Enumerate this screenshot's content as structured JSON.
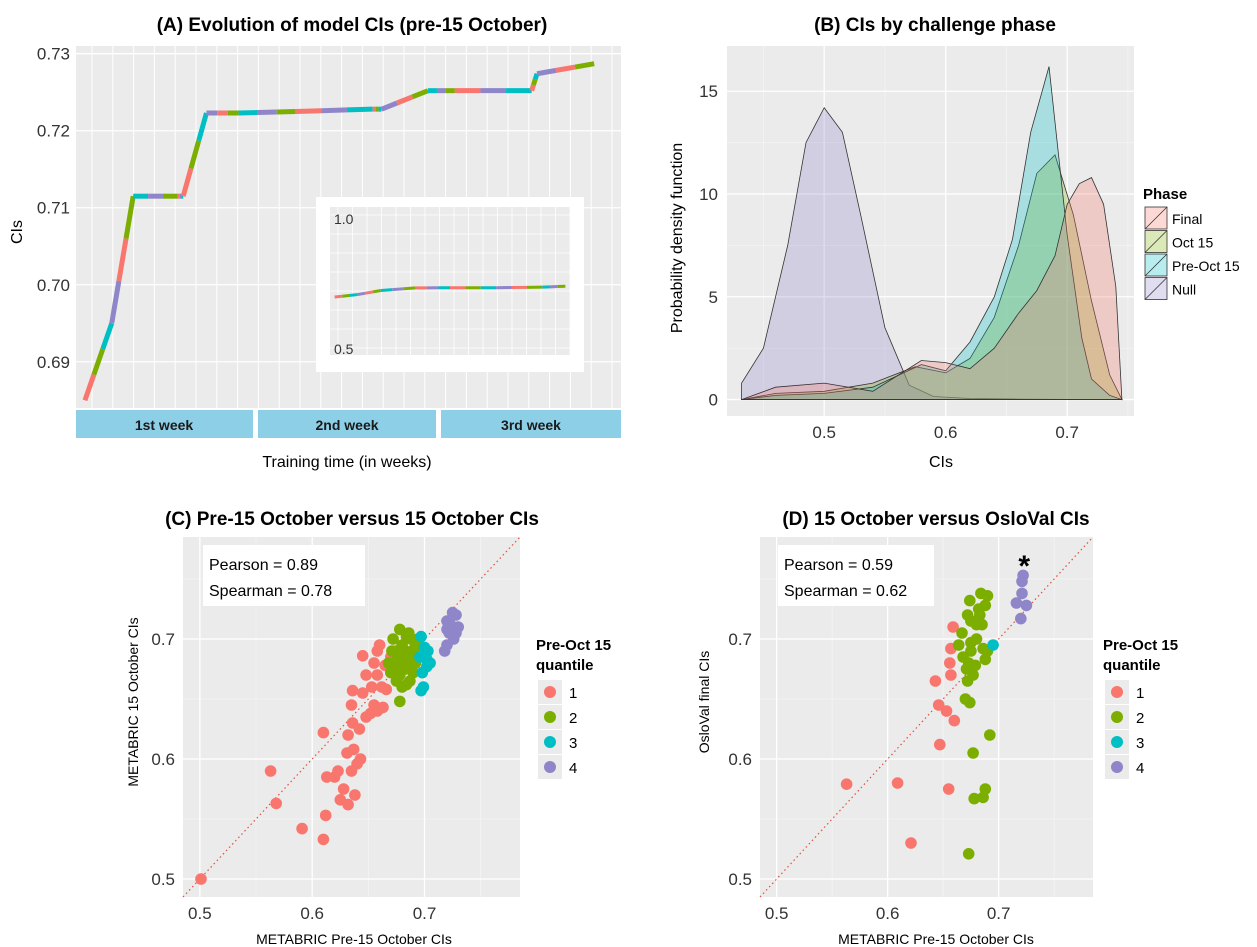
{
  "colors": {
    "panel_bg": "#ebebeb",
    "grid": "#ffffff",
    "week_bar": "#8ecfe8",
    "q1": "#f8766d",
    "q2": "#7cae00",
    "q3": "#00bfc4",
    "q4": "#8f86c9",
    "phase_final": "#f8766d",
    "phase_oct15": "#7cae00",
    "phase_preoct15": "#00bfc4",
    "phase_null": "#8f86c9",
    "diag_line": "#e0503e"
  },
  "chart_data": [
    {
      "id": "A",
      "type": "line",
      "title": "(A) Evolution of model CIs (pre-15 October)",
      "ylabel": "CIs",
      "xlabel": "Training time (in weeks)",
      "ylim": [
        0.684,
        0.731
      ],
      "yticks": [
        0.69,
        0.7,
        0.71,
        0.72,
        0.73
      ],
      "ytick_labels": [
        "0.69",
        "0.70",
        "0.71",
        "0.72",
        "0.73"
      ],
      "week_labels": [
        "1st week",
        "2nd week",
        "3rd week"
      ],
      "grid": true,
      "x": [
        0.0,
        0.15,
        0.27,
        0.52,
        0.55,
        0.68,
        0.86,
        1.18,
        1.61,
        1.66,
        1.92,
        2.07,
        2.5,
        2.53,
        2.85
      ],
      "y": [
        0.685,
        0.695,
        0.7115,
        0.7115,
        0.7115,
        0.7223,
        0.7223,
        0.7225,
        0.7228,
        0.7228,
        0.7252,
        0.7252,
        0.7252,
        0.7274,
        0.7287
      ],
      "inset": {
        "ytick_labels": [
          "1.0",
          "0.5"
        ],
        "yticks": [
          1.0,
          0.5
        ],
        "ylim": [
          0.45,
          1.05
        ],
        "x": [
          0.0,
          0.1,
          0.2,
          0.35,
          0.5,
          0.7,
          0.9,
          1.0
        ],
        "y": [
          0.685,
          0.695,
          0.7115,
          0.7223,
          0.7225,
          0.7228,
          0.7252,
          0.7287
        ]
      }
    },
    {
      "id": "B",
      "type": "area",
      "title": "(B) CIs by challenge phase",
      "xlabel": "CIs",
      "ylabel": "Probability density function",
      "xlim": [
        0.42,
        0.755
      ],
      "ylim": [
        -0.8,
        17.2
      ],
      "xticks": [
        0.5,
        0.6,
        0.7
      ],
      "xtick_labels": [
        "0.5",
        "0.6",
        "0.7"
      ],
      "yticks": [
        0,
        5,
        10,
        15
      ],
      "ytick_labels": [
        "0",
        "5",
        "10",
        "15"
      ],
      "grid": true,
      "legend_title": "Phase",
      "legend_position": "right",
      "series": [
        {
          "name": "Null",
          "color_key": "phase_null",
          "x": [
            0.432,
            0.45,
            0.47,
            0.485,
            0.5,
            0.515,
            0.53,
            0.55,
            0.57,
            0.59,
            0.62,
            0.66,
            0.7,
            0.745
          ],
          "y": [
            0.8,
            2.5,
            7.5,
            12.5,
            14.2,
            13.0,
            9.0,
            3.5,
            0.7,
            0.15,
            0.05,
            0.02,
            0.01,
            0.0
          ]
        },
        {
          "name": "Oct 15",
          "color_key": "phase_oct15",
          "x": [
            0.432,
            0.46,
            0.5,
            0.54,
            0.575,
            0.6,
            0.62,
            0.64,
            0.66,
            0.675,
            0.69,
            0.705,
            0.72,
            0.735,
            0.745
          ],
          "y": [
            0.0,
            0.3,
            0.4,
            0.8,
            1.6,
            1.3,
            2.0,
            4.0,
            7.5,
            11.0,
            11.9,
            9.0,
            4.8,
            1.2,
            0.0
          ]
        },
        {
          "name": "Pre-Oct 15",
          "color_key": "phase_preoct15",
          "x": [
            0.432,
            0.46,
            0.5,
            0.54,
            0.58,
            0.6,
            0.62,
            0.64,
            0.655,
            0.67,
            0.685,
            0.7,
            0.712,
            0.72,
            0.735,
            0.745
          ],
          "y": [
            0.0,
            0.2,
            0.3,
            0.6,
            1.7,
            1.4,
            2.8,
            5.0,
            7.8,
            13.0,
            16.2,
            8.0,
            3.0,
            1.0,
            0.2,
            0.0
          ]
        },
        {
          "name": "Final",
          "color_key": "phase_final",
          "x": [
            0.432,
            0.46,
            0.5,
            0.54,
            0.58,
            0.6,
            0.62,
            0.64,
            0.66,
            0.675,
            0.69,
            0.7,
            0.71,
            0.72,
            0.73,
            0.74,
            0.745
          ],
          "y": [
            0.0,
            0.6,
            0.8,
            0.4,
            1.9,
            1.8,
            1.5,
            2.5,
            4.2,
            5.3,
            7.0,
            9.5,
            10.5,
            10.8,
            9.5,
            5.5,
            0.0
          ]
        }
      ]
    },
    {
      "id": "C",
      "type": "scatter",
      "title": "(C) Pre-15 October versus 15 October CIs",
      "xlabel": "METABRIC Pre-15 October CIs",
      "ylabel": "METABRIC 15 October CIs",
      "xlim": [
        0.485,
        0.785
      ],
      "ylim": [
        0.485,
        0.785
      ],
      "xticks": [
        0.5,
        0.6,
        0.7
      ],
      "yticks": [
        0.5,
        0.6,
        0.7
      ],
      "xtick_labels": [
        "0.5",
        "0.6",
        "0.7"
      ],
      "ytick_labels": [
        "0.5",
        "0.6",
        "0.7"
      ],
      "grid": true,
      "annotation": [
        "Pearson = 0.89",
        "Spearman = 0.78"
      ],
      "legend_title": [
        "Pre-Oct 15",
        "quantile"
      ],
      "legend_position": "right",
      "legend_labels": [
        "1",
        "2",
        "3",
        "4"
      ],
      "series": [
        {
          "name": "1",
          "color_key": "q1",
          "points": [
            [
              0.501,
              0.5
            ],
            [
              0.568,
              0.563
            ],
            [
              0.563,
              0.59
            ],
            [
              0.591,
              0.542
            ],
            [
              0.61,
              0.533
            ],
            [
              0.612,
              0.553
            ],
            [
              0.613,
              0.585
            ],
            [
              0.62,
              0.585
            ],
            [
              0.625,
              0.566
            ],
            [
              0.623,
              0.59
            ],
            [
              0.628,
              0.575
            ],
            [
              0.632,
              0.562
            ],
            [
              0.638,
              0.57
            ],
            [
              0.635,
              0.59
            ],
            [
              0.64,
              0.596
            ],
            [
              0.631,
              0.605
            ],
            [
              0.637,
              0.608
            ],
            [
              0.643,
              0.6
            ],
            [
              0.632,
              0.62
            ],
            [
              0.636,
              0.63
            ],
            [
              0.642,
              0.625
            ],
            [
              0.648,
              0.635
            ],
            [
              0.652,
              0.638
            ],
            [
              0.655,
              0.645
            ],
            [
              0.658,
              0.64
            ],
            [
              0.66,
              0.642
            ],
            [
              0.663,
              0.643
            ],
            [
              0.61,
              0.622
            ],
            [
              0.635,
              0.645
            ],
            [
              0.645,
              0.655
            ],
            [
              0.648,
              0.67
            ],
            [
              0.653,
              0.66
            ],
            [
              0.658,
              0.67
            ],
            [
              0.662,
              0.66
            ],
            [
              0.666,
              0.658
            ],
            [
              0.636,
              0.657
            ],
            [
              0.645,
              0.686
            ],
            [
              0.655,
              0.68
            ],
            [
              0.658,
              0.69
            ],
            [
              0.665,
              0.678
            ],
            [
              0.67,
              0.685
            ],
            [
              0.66,
              0.695
            ]
          ]
        },
        {
          "name": "2",
          "color_key": "q2",
          "points": [
            [
              0.672,
              0.7
            ],
            [
              0.675,
              0.69
            ],
            [
              0.678,
              0.708
            ],
            [
              0.68,
              0.695
            ],
            [
              0.683,
              0.69
            ],
            [
              0.686,
              0.705
            ],
            [
              0.688,
              0.7
            ],
            [
              0.685,
              0.68
            ],
            [
              0.683,
              0.675
            ],
            [
              0.678,
              0.67
            ],
            [
              0.675,
              0.665
            ],
            [
              0.673,
              0.672
            ],
            [
              0.68,
              0.66
            ],
            [
              0.687,
              0.665
            ],
            [
              0.69,
              0.672
            ],
            [
              0.692,
              0.68
            ],
            [
              0.693,
              0.695
            ],
            [
              0.695,
              0.685
            ],
            [
              0.694,
              0.7
            ],
            [
              0.678,
              0.648
            ],
            [
              0.682,
              0.682
            ],
            [
              0.668,
              0.68
            ],
            [
              0.67,
              0.672
            ],
            [
              0.676,
              0.683
            ],
            [
              0.689,
              0.688
            ],
            [
              0.691,
              0.692
            ],
            [
              0.684,
              0.702
            ],
            [
              0.679,
              0.69
            ],
            [
              0.674,
              0.678
            ],
            [
              0.671,
              0.69
            ],
            [
              0.684,
              0.662
            ]
          ]
        },
        {
          "name": "3",
          "color_key": "q3",
          "points": [
            [
              0.697,
              0.702
            ],
            [
              0.7,
              0.693
            ],
            [
              0.702,
              0.683
            ],
            [
              0.698,
              0.672
            ],
            [
              0.705,
              0.68
            ],
            [
              0.697,
              0.657
            ],
            [
              0.699,
              0.66
            ],
            [
              0.703,
              0.69
            ],
            [
              0.702,
              0.677
            ],
            [
              0.696,
              0.685
            ]
          ]
        },
        {
          "name": "4",
          "color_key": "q4",
          "points": [
            [
              0.718,
              0.69
            ],
            [
              0.72,
              0.695
            ],
            [
              0.722,
              0.705
            ],
            [
              0.725,
              0.722
            ],
            [
              0.728,
              0.72
            ],
            [
              0.73,
              0.71
            ],
            [
              0.72,
              0.715
            ],
            [
              0.723,
              0.712
            ],
            [
              0.728,
              0.705
            ],
            [
              0.726,
              0.7
            ],
            [
              0.72,
              0.708
            ]
          ]
        }
      ]
    },
    {
      "id": "D",
      "type": "scatter",
      "title": "(D) 15 October versus OsloVal CIs",
      "xlabel": "METABRIC Pre-15 October CIs",
      "ylabel": "OsloVal final CIs",
      "xlim": [
        0.485,
        0.785
      ],
      "ylim": [
        0.485,
        0.785
      ],
      "xticks": [
        0.5,
        0.6,
        0.7
      ],
      "yticks": [
        0.5,
        0.6,
        0.7
      ],
      "xtick_labels": [
        "0.5",
        "0.6",
        "0.7"
      ],
      "ytick_labels": [
        "0.5",
        "0.6",
        "0.7"
      ],
      "grid": true,
      "annotation": [
        "Pearson = 0.59",
        "Spearman = 0.62"
      ],
      "star_label": "*",
      "star_point": [
        0.723,
        0.764
      ],
      "legend_title": [
        "Pre-Oct 15",
        "quantile"
      ],
      "legend_position": "right",
      "legend_labels": [
        "1",
        "2",
        "3",
        "4"
      ],
      "series": [
        {
          "name": "1",
          "color_key": "q1",
          "points": [
            [
              0.563,
              0.579
            ],
            [
              0.609,
              0.58
            ],
            [
              0.621,
              0.53
            ],
            [
              0.655,
              0.575
            ],
            [
              0.647,
              0.612
            ],
            [
              0.646,
              0.645
            ],
            [
              0.653,
              0.64
            ],
            [
              0.66,
              0.632
            ],
            [
              0.643,
              0.665
            ],
            [
              0.657,
              0.67
            ],
            [
              0.656,
              0.68
            ],
            [
              0.657,
              0.692
            ],
            [
              0.659,
              0.71
            ]
          ]
        },
        {
          "name": "2",
          "color_key": "q2",
          "points": [
            [
              0.673,
              0.521
            ],
            [
              0.678,
              0.567
            ],
            [
              0.688,
              0.575
            ],
            [
              0.686,
              0.568
            ],
            [
              0.677,
              0.605
            ],
            [
              0.692,
              0.62
            ],
            [
              0.67,
              0.65
            ],
            [
              0.674,
              0.647
            ],
            [
              0.672,
              0.665
            ],
            [
              0.671,
              0.675
            ],
            [
              0.673,
              0.68
            ],
            [
              0.668,
              0.685
            ],
            [
              0.675,
              0.69
            ],
            [
              0.675,
              0.697
            ],
            [
              0.68,
              0.7
            ],
            [
              0.68,
              0.712
            ],
            [
              0.675,
              0.715
            ],
            [
              0.672,
              0.72
            ],
            [
              0.674,
              0.732
            ],
            [
              0.684,
              0.738
            ],
            [
              0.688,
              0.728
            ],
            [
              0.683,
              0.72
            ],
            [
              0.685,
              0.712
            ],
            [
              0.69,
              0.736
            ],
            [
              0.682,
              0.725
            ],
            [
              0.686,
              0.692
            ],
            [
              0.688,
              0.683
            ],
            [
              0.69,
              0.69
            ],
            [
              0.664,
              0.695
            ],
            [
              0.667,
              0.705
            ],
            [
              0.679,
              0.678
            ],
            [
              0.677,
              0.67
            ]
          ]
        },
        {
          "name": "3",
          "color_key": "q3",
          "points": [
            [
              0.695,
              0.695
            ]
          ]
        },
        {
          "name": "4",
          "color_key": "q4",
          "points": [
            [
              0.716,
              0.73
            ],
            [
              0.72,
              0.717
            ],
            [
              0.721,
              0.738
            ],
            [
              0.721,
              0.748
            ],
            [
              0.722,
              0.753
            ],
            [
              0.725,
              0.728
            ]
          ]
        }
      ]
    }
  ]
}
